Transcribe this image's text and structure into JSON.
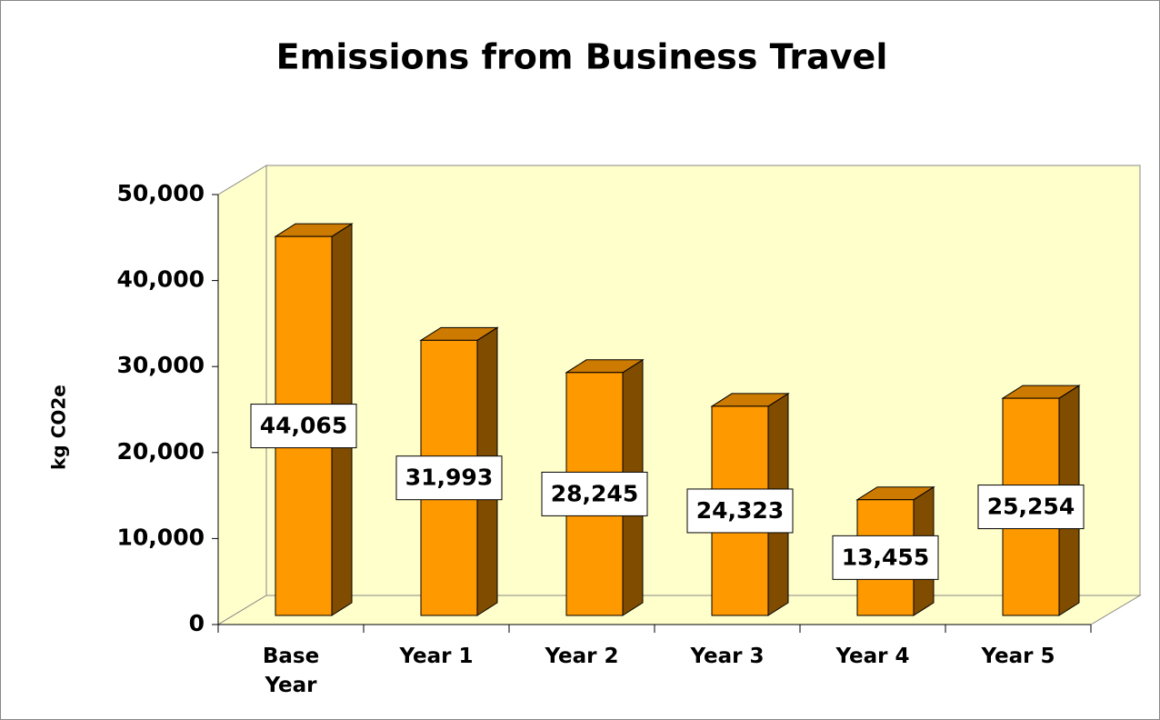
{
  "chart_data": {
    "type": "bar",
    "title": "Emissions from Business Travel",
    "ylabel": "kg CO2e",
    "categories": [
      "Base Year",
      "Year 1",
      "Year 2",
      "Year 3",
      "Year 4",
      "Year 5"
    ],
    "values": [
      44065,
      31993,
      28245,
      24323,
      13455,
      25254
    ],
    "value_labels": [
      "44,065",
      "31,993",
      "28,245",
      "24,323",
      "13,455",
      "25,254"
    ],
    "color": "#ff9900",
    "ylim": [
      0,
      50000
    ],
    "yticks": [
      0,
      {
        "value": 10000,
        "label": "10,000"
      },
      {
        "value": 20000,
        "label": "20,000"
      },
      {
        "value": 30000,
        "label": "30,000"
      },
      {
        "value": 40000,
        "label": "40,000"
      },
      {
        "value": 50000,
        "label": "50,000"
      }
    ],
    "background": "#ffffcc"
  }
}
